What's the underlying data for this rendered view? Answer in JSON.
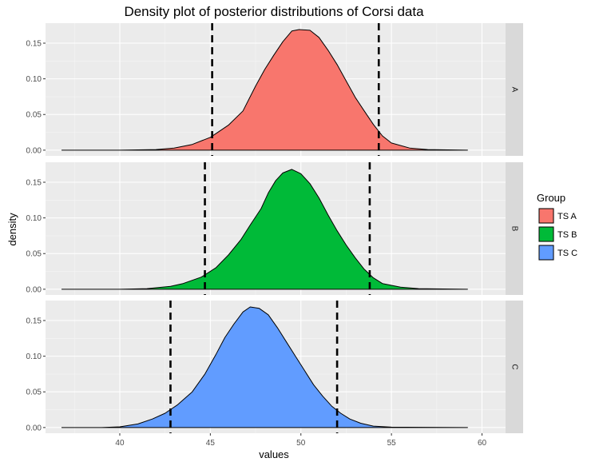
{
  "chart_data": {
    "type": "area",
    "title": "Density plot of posterior distributions of Corsi data",
    "xlabel": "values",
    "ylabel": "density",
    "xlim": [
      35.9,
      61.3
    ],
    "ylim": [
      -0.008,
      0.178
    ],
    "x_ticks": [
      40,
      45,
      50,
      55,
      60
    ],
    "y_ticks": [
      0.0,
      0.05,
      0.1,
      0.15
    ],
    "y_tick_labels": [
      "0.00",
      "0.05",
      "0.10",
      "0.15"
    ],
    "grid": true,
    "legend": {
      "title": "Group",
      "position": "right"
    },
    "facets": [
      {
        "strip": "A",
        "series": "TS A",
        "color": "#F8766D",
        "ci_lines": [
          45.1,
          54.3
        ],
        "points": [
          [
            36.8,
            0.0
          ],
          [
            40.0,
            0.0
          ],
          [
            42.0,
            0.0008
          ],
          [
            43.0,
            0.003
          ],
          [
            44.0,
            0.008
          ],
          [
            45.0,
            0.018
          ],
          [
            46.0,
            0.035
          ],
          [
            46.8,
            0.055
          ],
          [
            47.5,
            0.09
          ],
          [
            48.0,
            0.113
          ],
          [
            48.5,
            0.133
          ],
          [
            49.0,
            0.152
          ],
          [
            49.5,
            0.167
          ],
          [
            49.9,
            0.169
          ],
          [
            50.5,
            0.168
          ],
          [
            51.0,
            0.158
          ],
          [
            51.5,
            0.14
          ],
          [
            52.0,
            0.12
          ],
          [
            52.5,
            0.097
          ],
          [
            53.0,
            0.074
          ],
          [
            53.5,
            0.055
          ],
          [
            54.0,
            0.036
          ],
          [
            54.5,
            0.02
          ],
          [
            55.0,
            0.01
          ],
          [
            56.0,
            0.003
          ],
          [
            57.0,
            0.0008
          ],
          [
            59.2,
            0.0
          ]
        ]
      },
      {
        "strip": "B",
        "series": "TS B",
        "color": "#00BA38",
        "ci_lines": [
          44.7,
          53.8
        ],
        "points": [
          [
            36.8,
            0.0
          ],
          [
            40.0,
            0.0
          ],
          [
            41.5,
            0.0008
          ],
          [
            42.8,
            0.004
          ],
          [
            43.5,
            0.008
          ],
          [
            44.5,
            0.017
          ],
          [
            45.3,
            0.03
          ],
          [
            46.0,
            0.048
          ],
          [
            46.7,
            0.07
          ],
          [
            47.2,
            0.09
          ],
          [
            47.8,
            0.113
          ],
          [
            48.2,
            0.135
          ],
          [
            48.6,
            0.152
          ],
          [
            49.0,
            0.163
          ],
          [
            49.5,
            0.168
          ],
          [
            50.0,
            0.162
          ],
          [
            50.5,
            0.148
          ],
          [
            51.0,
            0.128
          ],
          [
            51.5,
            0.104
          ],
          [
            52.0,
            0.082
          ],
          [
            52.5,
            0.062
          ],
          [
            53.0,
            0.044
          ],
          [
            53.5,
            0.028
          ],
          [
            54.0,
            0.016
          ],
          [
            54.5,
            0.008
          ],
          [
            55.5,
            0.003
          ],
          [
            56.5,
            0.0008
          ],
          [
            59.2,
            0.0
          ]
        ]
      },
      {
        "strip": "C",
        "series": "TS C",
        "color": "#619CFF",
        "ci_lines": [
          42.8,
          52.0
        ],
        "points": [
          [
            36.8,
            0.0
          ],
          [
            39.0,
            0.0
          ],
          [
            40.0,
            0.001
          ],
          [
            41.0,
            0.005
          ],
          [
            41.8,
            0.012
          ],
          [
            42.5,
            0.02
          ],
          [
            43.2,
            0.032
          ],
          [
            44.0,
            0.05
          ],
          [
            44.7,
            0.075
          ],
          [
            45.3,
            0.102
          ],
          [
            45.8,
            0.126
          ],
          [
            46.3,
            0.145
          ],
          [
            46.8,
            0.162
          ],
          [
            47.2,
            0.169
          ],
          [
            47.7,
            0.167
          ],
          [
            48.2,
            0.158
          ],
          [
            48.7,
            0.14
          ],
          [
            49.2,
            0.12
          ],
          [
            49.7,
            0.1
          ],
          [
            50.2,
            0.08
          ],
          [
            50.7,
            0.06
          ],
          [
            51.2,
            0.044
          ],
          [
            51.7,
            0.03
          ],
          [
            52.2,
            0.02
          ],
          [
            52.7,
            0.012
          ],
          [
            53.3,
            0.006
          ],
          [
            54.0,
            0.002
          ],
          [
            55.0,
            0.0005
          ],
          [
            59.2,
            0.0
          ]
        ]
      }
    ]
  }
}
